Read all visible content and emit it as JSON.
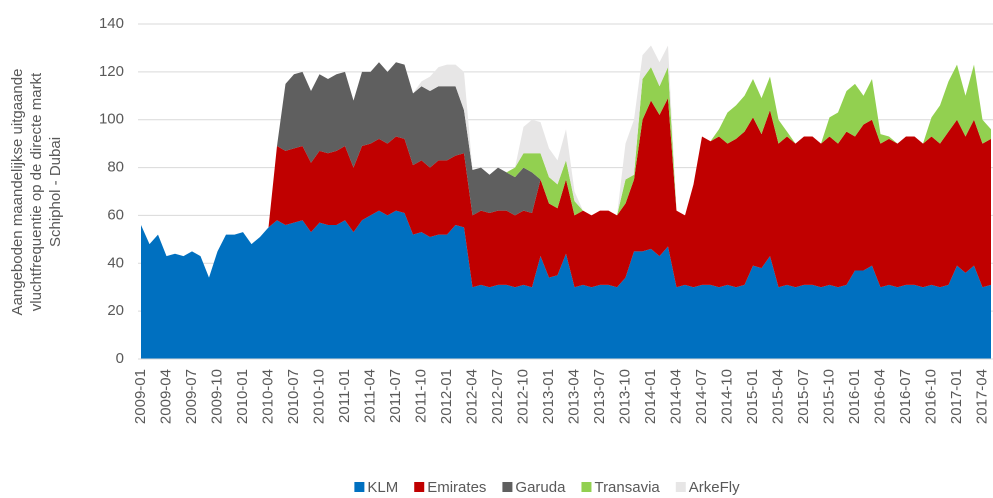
{
  "chart_data": {
    "type": "stacked_area",
    "y_label": [
      "Aangeboden maandelijkse uitgaande",
      "vluchtfrequentie op de directe markt",
      "Schiphol - Dubai"
    ],
    "ylim": [
      0,
      140
    ],
    "yticks": [
      0,
      20,
      40,
      60,
      80,
      100,
      120,
      140
    ],
    "grid": true,
    "legend": "bottom",
    "categories": [
      "2009-01",
      null,
      null,
      "2009-04",
      null,
      null,
      "2009-07",
      null,
      null,
      "2009-10",
      null,
      null,
      "2010-01",
      null,
      null,
      "2010-04",
      null,
      null,
      "2010-07",
      null,
      null,
      "2010-10",
      null,
      null,
      "2011-01",
      null,
      null,
      "2011-04",
      null,
      null,
      "2011-07",
      null,
      null,
      "2011-10",
      null,
      null,
      "2012-01",
      null,
      null,
      "2012-04",
      null,
      null,
      "2012-07",
      null,
      null,
      "2012-10",
      null,
      null,
      "2013-01",
      null,
      null,
      "2013-04",
      null,
      null,
      "2013-07",
      null,
      null,
      "2013-10",
      null,
      null,
      "2014-01",
      null,
      null,
      "2014-04",
      null,
      null,
      "2014-07",
      null,
      null,
      "2014-10",
      null,
      null,
      "2015-01",
      null,
      null,
      "2015-04",
      null,
      null,
      "2015-07",
      null,
      null,
      "2015-10",
      null,
      null,
      "2016-01",
      null,
      null,
      "2016-04",
      null,
      null,
      "2016-07",
      null,
      null,
      "2016-10",
      null,
      null,
      "2017-01",
      null,
      null,
      "2017-04",
      null
    ],
    "series": [
      {
        "name": "KLM",
        "color": "#0070c0",
        "values": [
          56,
          48,
          52,
          43,
          44,
          43,
          45,
          43,
          34,
          45,
          52,
          52,
          53,
          48,
          51,
          55,
          58,
          56,
          57,
          58,
          53,
          57,
          56,
          56,
          58,
          53,
          58,
          60,
          62,
          60,
          62,
          61,
          52,
          53,
          51,
          52,
          52,
          56,
          55,
          30,
          31,
          30,
          31,
          31,
          30,
          31,
          30,
          43,
          34,
          35,
          44,
          30,
          31,
          30,
          31,
          31,
          30,
          34,
          45,
          45,
          46,
          43,
          47,
          30,
          31,
          30,
          31,
          31,
          30,
          31,
          30,
          31,
          39,
          38,
          43,
          30,
          31,
          30,
          31,
          31,
          30,
          31,
          30,
          31,
          37,
          37,
          39,
          30,
          31,
          30,
          31,
          31,
          30,
          31,
          30,
          31,
          39,
          36,
          39,
          30,
          31
        ]
      },
      {
        "name": "Emirates",
        "color": "#c00000",
        "values": [
          0,
          0,
          0,
          0,
          0,
          0,
          0,
          0,
          0,
          0,
          0,
          0,
          0,
          0,
          0,
          0,
          31,
          31,
          31,
          31,
          29,
          30,
          30,
          31,
          31,
          27,
          31,
          30,
          30,
          30,
          31,
          31,
          29,
          30,
          29,
          31,
          31,
          29,
          31,
          30,
          31,
          31,
          31,
          31,
          30,
          31,
          31,
          32,
          31,
          28,
          31,
          30,
          31,
          30,
          31,
          31,
          30,
          31,
          30,
          55,
          62,
          59,
          62,
          32,
          29,
          43,
          62,
          60,
          63,
          59,
          62,
          64,
          62,
          56,
          61,
          60,
          62,
          60,
          62,
          62,
          60,
          62,
          60,
          64,
          56,
          61,
          61,
          60,
          61,
          60,
          62,
          62,
          60,
          62,
          60,
          64,
          61,
          57,
          61,
          60,
          61
        ]
      },
      {
        "name": "Garuda",
        "color": "#5f5f5f",
        "values": [
          0,
          0,
          0,
          0,
          0,
          0,
          0,
          0,
          0,
          0,
          0,
          0,
          0,
          0,
          0,
          0,
          0,
          28,
          31,
          31,
          30,
          32,
          31,
          32,
          31,
          28,
          31,
          30,
          32,
          30,
          31,
          31,
          30,
          31,
          32,
          31,
          31,
          29,
          18,
          19,
          18,
          16,
          18,
          16,
          16,
          18,
          17,
          0,
          0,
          0,
          0,
          0,
          0,
          0,
          0,
          0,
          0,
          0,
          0,
          0,
          0,
          0,
          0,
          0,
          0,
          0,
          0,
          0,
          0,
          0,
          0,
          0,
          0,
          0,
          0,
          0,
          0,
          0,
          0,
          0,
          0,
          0,
          0,
          0,
          0,
          0,
          0,
          0,
          0,
          0,
          0,
          0,
          0,
          0,
          0,
          0,
          0,
          0,
          0,
          0,
          0
        ]
      },
      {
        "name": "Transavia",
        "color": "#92d050",
        "values": [
          0,
          0,
          0,
          0,
          0,
          0,
          0,
          0,
          0,
          0,
          0,
          0,
          0,
          0,
          0,
          0,
          0,
          0,
          0,
          0,
          0,
          0,
          0,
          0,
          0,
          0,
          0,
          0,
          0,
          0,
          0,
          0,
          0,
          0,
          0,
          0,
          0,
          0,
          0,
          0,
          0,
          0,
          0,
          0,
          4,
          6,
          8,
          11,
          11,
          10,
          8,
          6,
          0,
          0,
          0,
          0,
          0,
          10,
          2,
          17,
          14,
          12,
          13,
          0,
          0,
          0,
          0,
          0,
          3,
          13,
          14,
          15,
          16,
          15,
          14,
          10,
          2,
          0,
          0,
          0,
          0,
          8,
          13,
          17,
          22,
          12,
          17,
          4,
          1,
          0,
          0,
          0,
          0,
          8,
          16,
          21,
          23,
          17,
          23,
          10,
          4
        ]
      },
      {
        "name": "ArkeFly",
        "color": "#e7e6e6",
        "values": [
          0,
          0,
          0,
          0,
          0,
          0,
          0,
          0,
          0,
          0,
          0,
          0,
          0,
          0,
          0,
          0,
          0,
          0,
          0,
          0,
          0,
          0,
          0,
          0,
          0,
          0,
          0,
          0,
          0,
          0,
          0,
          0,
          0,
          2,
          6,
          8,
          9,
          9,
          16,
          0,
          0,
          0,
          0,
          0,
          0,
          11,
          14,
          13,
          12,
          10,
          13,
          4,
          0,
          0,
          0,
          0,
          0,
          15,
          23,
          10,
          9,
          10,
          9,
          0,
          0,
          0,
          0,
          0,
          0,
          0,
          0,
          0,
          0,
          0,
          0,
          0,
          0,
          0,
          0,
          0,
          0,
          0,
          0,
          0,
          0,
          0,
          0,
          0,
          0,
          0,
          0,
          0,
          0,
          0,
          0,
          0,
          0,
          0,
          0,
          0,
          0
        ]
      }
    ]
  }
}
